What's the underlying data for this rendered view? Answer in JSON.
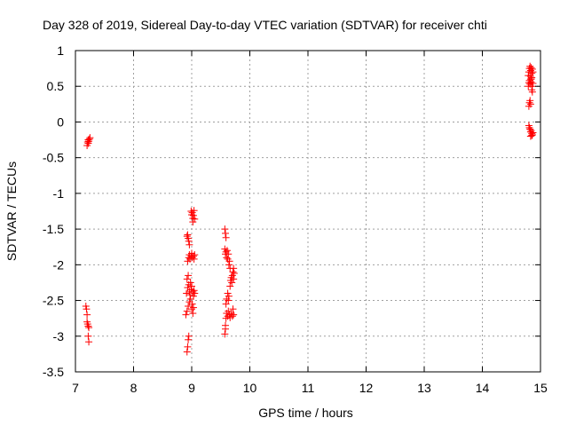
{
  "chart_data": {
    "type": "scatter",
    "title": "Day 328 of 2019, Sidereal Day-to-day VTEC variation (SDTVAR) for receiver chti",
    "xlabel": "GPS time / hours",
    "ylabel": "SDTVAR / TECUs",
    "xlim": [
      7,
      15
    ],
    "ylim": [
      -3.5,
      1
    ],
    "x_ticks": [
      7,
      8,
      9,
      10,
      11,
      12,
      13,
      14,
      15
    ],
    "y_ticks": [
      -3.5,
      -3,
      -2.5,
      -2,
      -1.5,
      -1,
      -0.5,
      0,
      0.5,
      1
    ],
    "x_tick_labels": [
      "7",
      "8",
      "9",
      "10",
      "11",
      "12",
      "13",
      "14",
      "15"
    ],
    "y_tick_labels": [
      "-3.5",
      "-3",
      "-2.5",
      "-2",
      "-1.5",
      "-1",
      "-0.5",
      "0",
      "0.5",
      "1"
    ],
    "grid": true,
    "marker": "+",
    "series": [
      {
        "name": "SDTVAR",
        "color": "#ff0000",
        "points": [
          [
            7.2,
            -0.33
          ],
          [
            7.21,
            -0.28
          ],
          [
            7.22,
            -0.25
          ],
          [
            7.23,
            -0.27
          ],
          [
            7.24,
            -0.24
          ],
          [
            7.25,
            -0.22
          ],
          [
            7.22,
            -0.3
          ],
          [
            7.18,
            -2.58
          ],
          [
            7.19,
            -2.62
          ],
          [
            7.2,
            -2.7
          ],
          [
            7.2,
            -2.8
          ],
          [
            7.21,
            -2.83
          ],
          [
            7.22,
            -2.86
          ],
          [
            7.23,
            -2.88
          ],
          [
            7.22,
            -3.0
          ],
          [
            7.23,
            -3.08
          ],
          [
            8.92,
            -3.22
          ],
          [
            8.93,
            -3.15
          ],
          [
            8.94,
            -3.05
          ],
          [
            8.95,
            -3.0
          ],
          [
            8.9,
            -2.7
          ],
          [
            8.92,
            -2.65
          ],
          [
            8.94,
            -2.58
          ],
          [
            8.96,
            -2.52
          ],
          [
            8.98,
            -2.48
          ],
          [
            9.0,
            -2.62
          ],
          [
            9.02,
            -2.68
          ],
          [
            9.03,
            -2.6
          ],
          [
            9.01,
            -2.55
          ],
          [
            8.91,
            -2.4
          ],
          [
            8.93,
            -2.32
          ],
          [
            8.95,
            -2.28
          ],
          [
            8.96,
            -2.38
          ],
          [
            8.97,
            -2.42
          ],
          [
            8.99,
            -2.35
          ],
          [
            9.0,
            -2.3
          ],
          [
            9.02,
            -2.38
          ],
          [
            9.03,
            -2.44
          ],
          [
            9.04,
            -2.36
          ],
          [
            9.05,
            -2.4
          ],
          [
            8.98,
            -2.25
          ],
          [
            8.92,
            -2.2
          ],
          [
            8.94,
            -2.15
          ],
          [
            8.93,
            -1.95
          ],
          [
            8.95,
            -1.9
          ],
          [
            8.96,
            -1.86
          ],
          [
            8.97,
            -1.92
          ],
          [
            8.99,
            -1.88
          ],
          [
            9.0,
            -1.84
          ],
          [
            9.01,
            -1.9
          ],
          [
            9.03,
            -1.88
          ],
          [
            9.04,
            -1.92
          ],
          [
            9.05,
            -1.86
          ],
          [
            8.92,
            -1.6
          ],
          [
            8.93,
            -1.58
          ],
          [
            8.94,
            -1.63
          ],
          [
            8.95,
            -1.67
          ],
          [
            8.96,
            -1.72
          ],
          [
            8.99,
            -1.25
          ],
          [
            9.0,
            -1.3
          ],
          [
            9.01,
            -1.27
          ],
          [
            9.02,
            -1.35
          ],
          [
            9.03,
            -1.31
          ],
          [
            9.04,
            -1.24
          ],
          [
            9.05,
            -1.36
          ],
          [
            9.02,
            -1.4
          ],
          [
            9.57,
            -2.97
          ],
          [
            9.58,
            -2.9
          ],
          [
            9.58,
            -2.85
          ],
          [
            9.59,
            -2.75
          ],
          [
            9.6,
            -2.68
          ],
          [
            9.62,
            -2.72
          ],
          [
            9.63,
            -2.65
          ],
          [
            9.65,
            -2.7
          ],
          [
            9.66,
            -2.74
          ],
          [
            9.68,
            -2.68
          ],
          [
            9.7,
            -2.72
          ],
          [
            9.72,
            -2.7
          ],
          [
            9.71,
            -2.62
          ],
          [
            9.59,
            -2.55
          ],
          [
            9.6,
            -2.48
          ],
          [
            9.62,
            -2.4
          ],
          [
            9.63,
            -2.5
          ],
          [
            9.64,
            -2.44
          ],
          [
            9.66,
            -2.3
          ],
          [
            9.67,
            -2.22
          ],
          [
            9.68,
            -2.18
          ],
          [
            9.69,
            -2.25
          ],
          [
            9.7,
            -2.15
          ],
          [
            9.71,
            -2.1
          ],
          [
            9.72,
            -2.2
          ],
          [
            9.73,
            -2.12
          ],
          [
            9.72,
            -2.05
          ],
          [
            9.64,
            -2.0
          ],
          [
            9.65,
            -1.95
          ],
          [
            9.66,
            -2.05
          ],
          [
            9.62,
            -1.92
          ],
          [
            9.63,
            -1.85
          ],
          [
            9.57,
            -1.78
          ],
          [
            9.58,
            -1.85
          ],
          [
            9.59,
            -1.82
          ],
          [
            9.6,
            -1.9
          ],
          [
            9.61,
            -1.8
          ],
          [
            9.57,
            -1.5
          ],
          [
            9.58,
            -1.56
          ],
          [
            9.59,
            -1.62
          ],
          [
            14.8,
            0.22
          ],
          [
            14.81,
            0.27
          ],
          [
            14.82,
            0.3
          ],
          [
            14.83,
            0.25
          ],
          [
            14.79,
            0.5
          ],
          [
            14.8,
            0.55
          ],
          [
            14.81,
            0.58
          ],
          [
            14.82,
            0.53
          ],
          [
            14.83,
            0.6
          ],
          [
            14.84,
            0.56
          ],
          [
            14.85,
            0.62
          ],
          [
            14.86,
            0.5
          ],
          [
            14.87,
            0.54
          ],
          [
            14.85,
            0.45
          ],
          [
            14.86,
            0.42
          ],
          [
            14.79,
            0.65
          ],
          [
            14.8,
            0.7
          ],
          [
            14.81,
            0.75
          ],
          [
            14.82,
            0.78
          ],
          [
            14.83,
            0.72
          ],
          [
            14.84,
            0.76
          ],
          [
            14.85,
            0.68
          ],
          [
            14.86,
            0.74
          ],
          [
            14.87,
            0.7
          ],
          [
            14.83,
            0.64
          ],
          [
            14.84,
            0.6
          ],
          [
            14.8,
            -0.05
          ],
          [
            14.81,
            -0.08
          ],
          [
            14.82,
            -0.1
          ],
          [
            14.83,
            -0.14
          ],
          [
            14.84,
            -0.12
          ],
          [
            14.85,
            -0.16
          ],
          [
            14.86,
            -0.18
          ],
          [
            14.87,
            -0.15
          ],
          [
            14.83,
            -0.2
          ],
          [
            14.85,
            -0.19
          ]
        ]
      }
    ]
  }
}
